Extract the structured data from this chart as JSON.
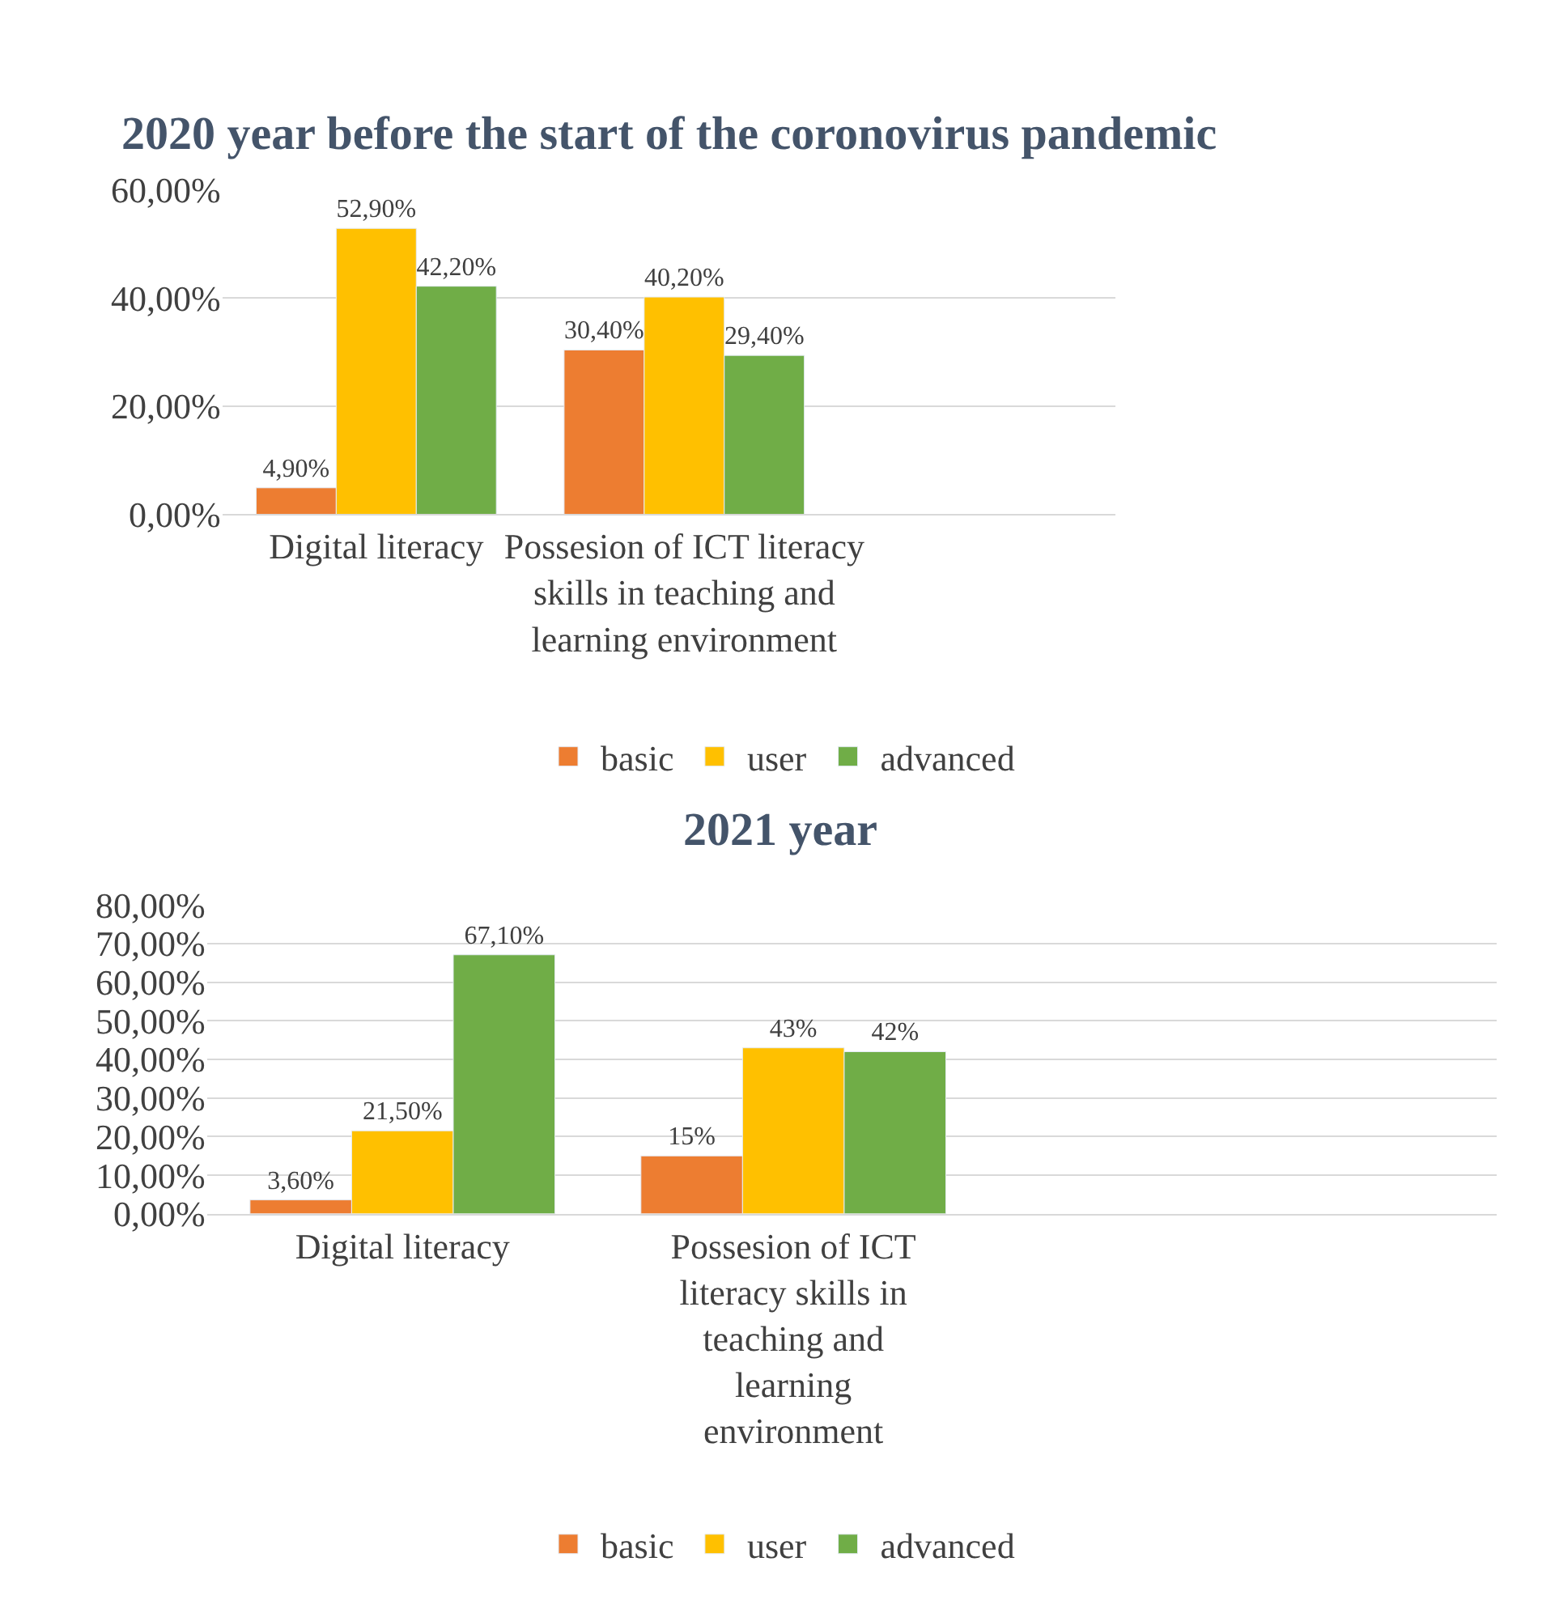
{
  "chart_data": [
    {
      "type": "bar",
      "title": "2020 year before the start of the coronovirus pandemic",
      "categories": [
        "Digital literacy",
        "Possesion of ICT literacy skills in teaching and learning environment"
      ],
      "series": [
        {
          "name": "basic",
          "color": "#ed7d31",
          "values": [
            4.9,
            30.4
          ],
          "value_labels": [
            "4,90%",
            "30,40%"
          ]
        },
        {
          "name": "user",
          "color": "#ffc000",
          "values": [
            52.9,
            40.2
          ],
          "value_labels": [
            "52,90%",
            "40,20%"
          ]
        },
        {
          "name": "advanced",
          "color": "#70ad47",
          "values": [
            42.2,
            29.4
          ],
          "value_labels": [
            "42,20%",
            "29,40%"
          ]
        }
      ],
      "ylim": [
        0,
        60
      ],
      "yticks": [
        {
          "value": 0,
          "label": "0,00%"
        },
        {
          "value": 20,
          "label": "20,00%"
        },
        {
          "value": 40,
          "label": "40,00%"
        },
        {
          "value": 60,
          "label": "60,00%"
        }
      ],
      "grid": "y",
      "legend": "bottom"
    },
    {
      "type": "bar",
      "title": "2021 year",
      "categories": [
        "Digital literacy",
        "Possesion of ICT literacy skills in teaching and learning environment"
      ],
      "series": [
        {
          "name": "basic",
          "color": "#ed7d31",
          "values": [
            3.6,
            15
          ],
          "value_labels": [
            "3,60%",
            "15%"
          ]
        },
        {
          "name": "user",
          "color": "#ffc000",
          "values": [
            21.5,
            43
          ],
          "value_labels": [
            "21,50%",
            "43%"
          ]
        },
        {
          "name": "advanced",
          "color": "#70ad47",
          "values": [
            67.1,
            42
          ],
          "value_labels": [
            "67,10%",
            "42%"
          ]
        }
      ],
      "ylim": [
        0,
        80
      ],
      "yticks": [
        {
          "value": 0,
          "label": "0,00%"
        },
        {
          "value": 10,
          "label": "10,00%"
        },
        {
          "value": 20,
          "label": "20,00%"
        },
        {
          "value": 30,
          "label": "30,00%"
        },
        {
          "value": 40,
          "label": "40,00%"
        },
        {
          "value": 50,
          "label": "50,00%"
        },
        {
          "value": 60,
          "label": "60,00%"
        },
        {
          "value": 70,
          "label": "70,00%"
        },
        {
          "value": 80,
          "label": "80,00%"
        }
      ],
      "grid": "y",
      "legend": "bottom"
    }
  ]
}
